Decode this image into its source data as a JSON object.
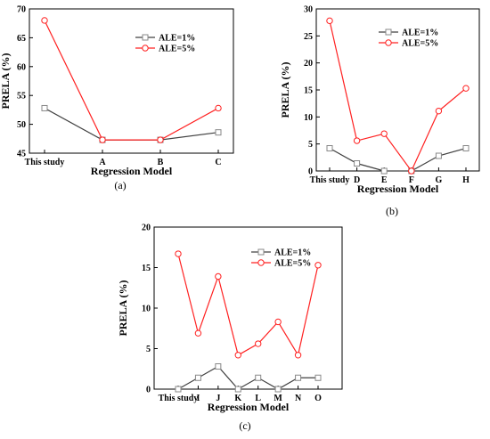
{
  "colors": {
    "series_1": "#404040",
    "series_2": "#ff2020",
    "axis": "#000000"
  },
  "chart_data": [
    {
      "type": "line",
      "caption": "(a)",
      "categories": [
        "This study",
        "A",
        "B",
        "C"
      ],
      "series": [
        {
          "name": "ALE=1%",
          "values": [
            52.8,
            47.3,
            47.3,
            48.6
          ],
          "marker": "square"
        },
        {
          "name": "ALE=5%",
          "values": [
            68.0,
            47.3,
            47.3,
            52.8
          ],
          "marker": "circle"
        }
      ],
      "xlabel": "Regression Model",
      "ylabel": "PRELA (%)",
      "ylim": [
        45,
        70
      ],
      "yticks": [
        45,
        50,
        55,
        60,
        65,
        70
      ],
      "legend": "top-right",
      "grid": false
    },
    {
      "type": "line",
      "caption": "(b)",
      "categories": [
        "This study",
        "D",
        "E",
        "F",
        "G",
        "H"
      ],
      "series": [
        {
          "name": "ALE=1%",
          "values": [
            4.2,
            1.4,
            0.0,
            0.0,
            2.8,
            4.2
          ],
          "marker": "square"
        },
        {
          "name": "ALE=5%",
          "values": [
            27.8,
            5.6,
            6.9,
            0.0,
            11.1,
            15.3
          ],
          "marker": "circle"
        }
      ],
      "xlabel": "Regression Model",
      "ylabel": "PRELA (%)",
      "ylim": [
        0,
        30
      ],
      "yticks": [
        0,
        5,
        10,
        15,
        20,
        25,
        30
      ],
      "legend": "top-right",
      "grid": false
    },
    {
      "type": "line",
      "caption": "(c)",
      "categories": [
        "This study",
        "I",
        "J",
        "K",
        "L",
        "M",
        "N",
        "O"
      ],
      "series": [
        {
          "name": "ALE=1%",
          "values": [
            0.0,
            1.4,
            2.8,
            0.0,
            1.4,
            0.0,
            1.4,
            1.4
          ],
          "marker": "square"
        },
        {
          "name": "ALE=5%",
          "values": [
            16.7,
            6.9,
            13.9,
            4.2,
            5.6,
            8.3,
            4.2,
            15.3
          ],
          "marker": "circle"
        }
      ],
      "xlabel": "Regression Model",
      "ylabel": "PRELA (%)",
      "ylim": [
        0,
        20
      ],
      "yticks": [
        0,
        5,
        10,
        15,
        20
      ],
      "legend": "top-right",
      "grid": false
    }
  ]
}
